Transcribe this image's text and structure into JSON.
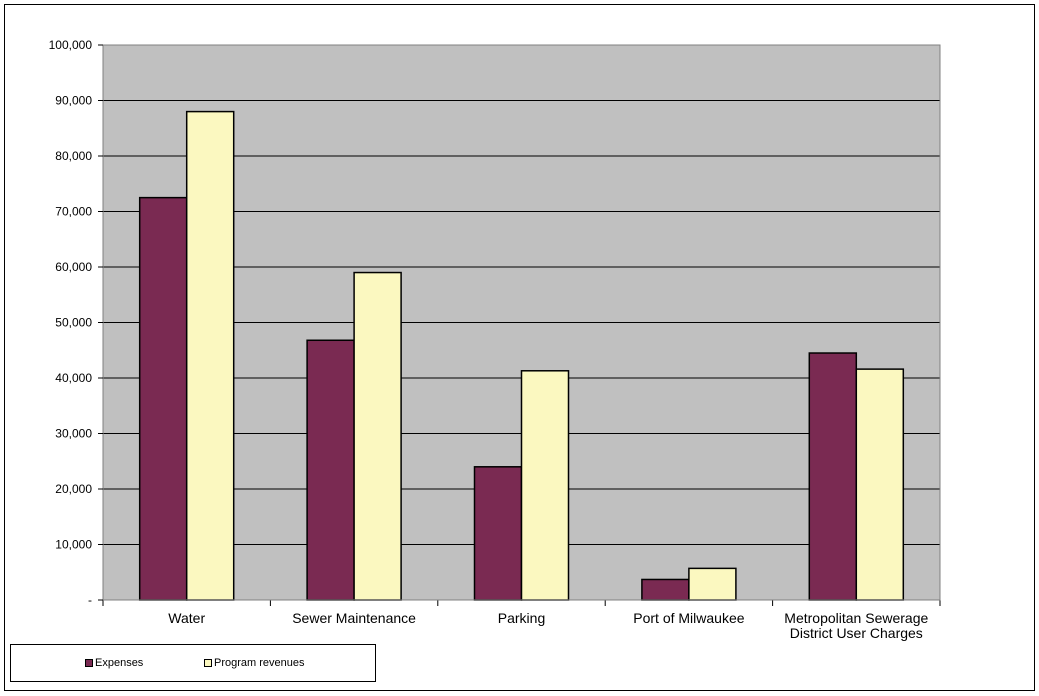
{
  "chart_data": {
    "type": "bar",
    "categories": [
      [
        "Water"
      ],
      [
        "Sewer Maintenance"
      ],
      [
        "Parking"
      ],
      [
        "Port of Milwaukee"
      ],
      [
        "Metropolitan Sewerage",
        "District User Charges"
      ]
    ],
    "series": [
      {
        "name": "Expenses",
        "color": "#7a2a52",
        "values": [
          72500,
          46800,
          24000,
          3700,
          44500
        ]
      },
      {
        "name": "Program revenues",
        "color": "#fbf8c0",
        "values": [
          88000,
          59000,
          41300,
          5700,
          41600
        ]
      }
    ],
    "ylim": [
      0,
      100000
    ],
    "y_ticks": [
      {
        "value": 0,
        "label": "-"
      },
      {
        "value": 10000,
        "label": "10,000"
      },
      {
        "value": 20000,
        "label": "20,000"
      },
      {
        "value": 30000,
        "label": "30,000"
      },
      {
        "value": 40000,
        "label": "40,000"
      },
      {
        "value": 50000,
        "label": "50,000"
      },
      {
        "value": 60000,
        "label": "60,000"
      },
      {
        "value": 70000,
        "label": "70,000"
      },
      {
        "value": 80000,
        "label": "80,000"
      },
      {
        "value": 90000,
        "label": "90,000"
      },
      {
        "value": 100000,
        "label": "100,000"
      }
    ],
    "plot_background": "#c0c0c0",
    "grid": true,
    "legend_position": "bottom-left",
    "title": "",
    "xlabel": "",
    "ylabel": ""
  }
}
